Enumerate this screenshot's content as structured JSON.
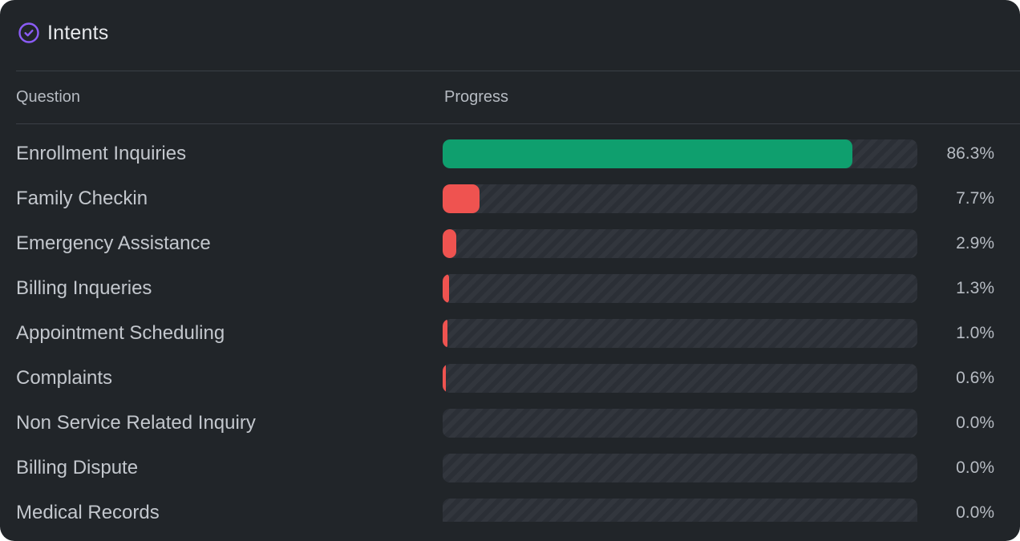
{
  "panel": {
    "title": "Intents",
    "icon": "check-circle-icon",
    "accent_color": "#8b5cf6"
  },
  "table": {
    "headers": {
      "question": "Question",
      "progress": "Progress"
    },
    "colors": {
      "high": "#0f9f6e",
      "low": "#ef5350"
    },
    "rows": [
      {
        "question": "Enrollment Inquiries",
        "percent_label": "86.3%",
        "value": 86.3,
        "color": "#0f9f6e"
      },
      {
        "question": "Family Checkin",
        "percent_label": "7.7%",
        "value": 7.7,
        "color": "#ef5350"
      },
      {
        "question": "Emergency Assistance",
        "percent_label": "2.9%",
        "value": 2.9,
        "color": "#ef5350"
      },
      {
        "question": "Billing Inqueries",
        "percent_label": "1.3%",
        "value": 1.3,
        "color": "#ef5350"
      },
      {
        "question": "Appointment Scheduling",
        "percent_label": "1.0%",
        "value": 1.0,
        "color": "#ef5350"
      },
      {
        "question": "Complaints",
        "percent_label": "0.6%",
        "value": 0.6,
        "color": "#ef5350"
      },
      {
        "question": "Non Service Related Inquiry",
        "percent_label": "0.0%",
        "value": 0.0,
        "color": "#ef5350"
      },
      {
        "question": "Billing Dispute",
        "percent_label": "0.0%",
        "value": 0.0,
        "color": "#ef5350"
      },
      {
        "question": "Medical Records",
        "percent_label": "0.0%",
        "value": 0.0,
        "color": "#ef5350"
      }
    ]
  }
}
